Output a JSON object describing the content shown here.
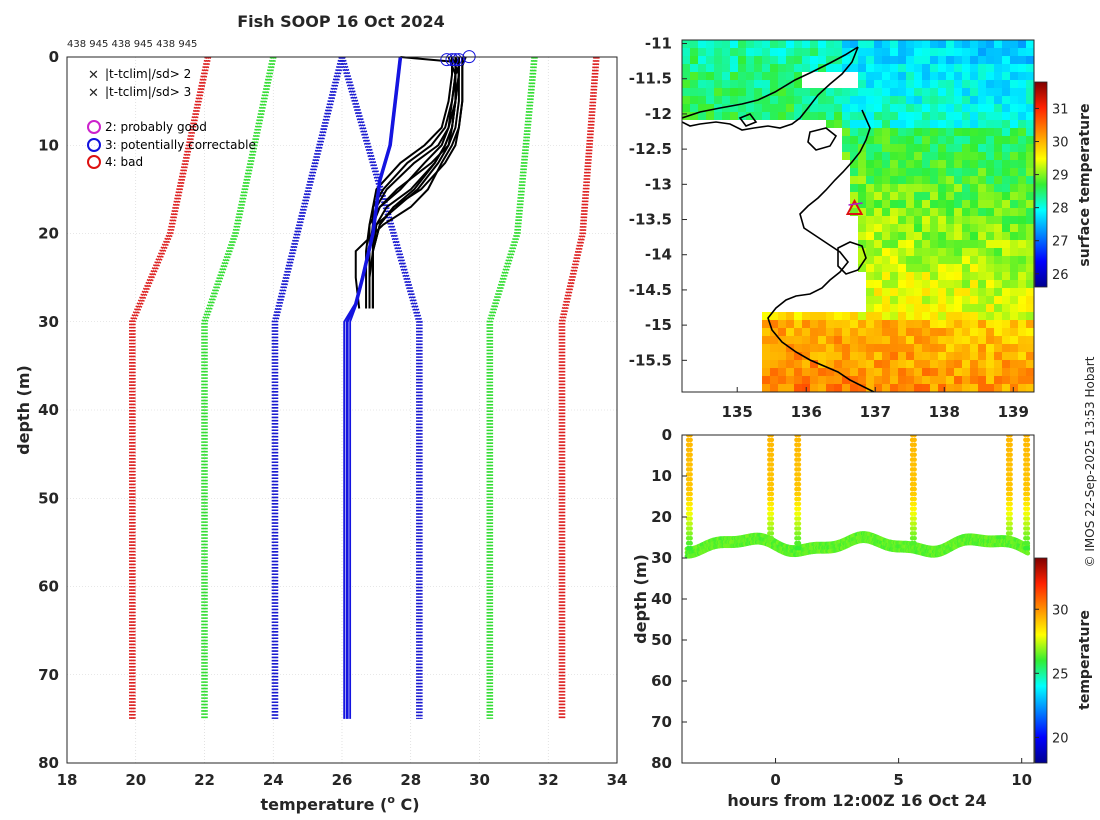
{
  "profile_chart": {
    "type": "line",
    "title": "Fish SOOP 16 Oct 2024",
    "ids_label": "438 945 438 945 438 945",
    "xlabel": "temperature (",
    "xlabel_sup": "o",
    "xlabel_end": " C)",
    "ylabel": "depth (m)",
    "xlim": [
      18,
      34
    ],
    "ylim": [
      80,
      0
    ],
    "xticks": [
      "18",
      "20",
      "22",
      "24",
      "26",
      "28",
      "30",
      "32",
      "34"
    ],
    "yticks": [
      "0",
      "10",
      "20",
      "30",
      "40",
      "50",
      "60",
      "70",
      "80"
    ],
    "legend": [
      {
        "marker": "x",
        "color": "#22cc22",
        "label": "|t-tclim|/sd> 2"
      },
      {
        "marker": "x",
        "color": "#dd1111",
        "label": "|t-tclim|/sd> 3"
      },
      {
        "marker": "o",
        "color": "#cc22cc",
        "label": "2: probably good"
      },
      {
        "marker": "o",
        "color": "#1111dd",
        "label": "3: potentially correctable"
      },
      {
        "marker": "o",
        "color": "#dd1111",
        "label": "4: bad"
      }
    ],
    "climatology": [
      {
        "name": "mean",
        "color": "#1a1ad0",
        "depth": [
          0,
          30,
          75
        ],
        "left": [
          26,
          24.05,
          24.05
        ],
        "right": [
          26,
          28.25,
          28.25
        ]
      },
      {
        "name": "2sd",
        "color": "#33dd33",
        "depth": [
          0,
          20,
          30,
          75
        ],
        "left": [
          24.0,
          22.9,
          22.0,
          22.0
        ],
        "right": [
          31.6,
          31.1,
          30.3,
          30.3
        ]
      },
      {
        "name": "3sd",
        "color": "#dd2222",
        "depth": [
          0,
          20,
          30,
          75
        ],
        "left": [
          22.1,
          21.0,
          19.9,
          19.9
        ],
        "right": [
          33.4,
          33.0,
          32.4,
          32.4
        ]
      }
    ],
    "mean_profile": {
      "color": "#1414e0",
      "depth": [
        0,
        10,
        14,
        20,
        25,
        28,
        30,
        40,
        75
      ],
      "temp": [
        27.7,
        27.4,
        27.1,
        26.9,
        26.6,
        26.4,
        26.15,
        26.15,
        26.15
      ]
    },
    "observed_profiles": {
      "color": "#000000",
      "depth": [
        0,
        1,
        2,
        5,
        8,
        10,
        12,
        15,
        17,
        19,
        22,
        25,
        28.5
      ],
      "profiles": [
        [
          29.1,
          29.2,
          29.2,
          29.1,
          28.9,
          28.4,
          27.7,
          27.0,
          26.9,
          26.8,
          26.8,
          26.8,
          26.8
        ],
        [
          29.2,
          29.3,
          29.3,
          29.2,
          29.0,
          28.6,
          27.9,
          27.2,
          26.9,
          26.9,
          26.8,
          26.8,
          26.8
        ],
        [
          29.3,
          29.3,
          29.4,
          29.3,
          29.1,
          28.8,
          28.1,
          27.3,
          27.0,
          26.9,
          26.9,
          26.9,
          26.9
        ],
        [
          29.4,
          29.4,
          29.4,
          29.4,
          29.3,
          29.1,
          28.6,
          27.6,
          27.1,
          26.9,
          26.9,
          26.8,
          26.8
        ],
        [
          29.3,
          29.4,
          29.4,
          29.3,
          29.2,
          29.0,
          28.7,
          28.0,
          27.3,
          27.0,
          26.9,
          26.9,
          26.9
        ],
        [
          29.5,
          29.5,
          29.5,
          29.5,
          29.4,
          29.3,
          29.0,
          28.3,
          27.5,
          27.1,
          26.9,
          26.9,
          26.9
        ],
        [
          29.2,
          29.2,
          29.3,
          29.2,
          29.1,
          28.9,
          28.4,
          27.7,
          27.1,
          26.8,
          26.7,
          26.7,
          26.7
        ],
        [
          29.6,
          29.5,
          29.5,
          29.5,
          29.4,
          29.2,
          28.9,
          28.5,
          28.0,
          27.2,
          26.4,
          26.4,
          26.5
        ],
        [
          29.4,
          29.4,
          29.3,
          29.3,
          29.2,
          29.0,
          28.7,
          28.1,
          27.5,
          27.1,
          26.9,
          26.9,
          26.9
        ],
        [
          29.2,
          29.3,
          29.3,
          29.3,
          29.2,
          29.1,
          28.8,
          28.2,
          27.6,
          27.0,
          26.9,
          26.9,
          26.9
        ]
      ]
    },
    "flagged_surface_points": [
      29.05,
      29.2,
      29.3,
      29.4,
      29.7
    ]
  },
  "map_chart": {
    "type": "heatmap",
    "xticks": [
      "135",
      "136",
      "137",
      "138",
      "139"
    ],
    "yticks": [
      "-11",
      "-11.5",
      "-12",
      "-12.5",
      "-13",
      "-13.5",
      "-14",
      "-14.5",
      "-15",
      "-15.5"
    ],
    "xlim": [
      134.2,
      139.3
    ],
    "ylim": [
      -15.95,
      -10.95
    ],
    "colorbar_label": "surface temperature",
    "colorbar_ticks": [
      "26",
      "27",
      "28",
      "29",
      "30",
      "31"
    ],
    "colorbar_range": [
      25.6,
      31.8
    ],
    "vessel_position": {
      "lon": 136.7,
      "lat": -13.35
    }
  },
  "timeseries_chart": {
    "type": "scatter",
    "xlabel": "hours from 12:00Z 16 Oct 24",
    "ylabel": "depth (m)",
    "xticks": [
      "0",
      "5",
      "10"
    ],
    "yticks": [
      "0",
      "10",
      "20",
      "30",
      "40",
      "50",
      "60",
      "70",
      "80"
    ],
    "xlim": [
      -3.8,
      10.5
    ],
    "ylim": [
      80,
      0
    ],
    "colorbar_label": "temperature",
    "colorbar_ticks": [
      "20",
      "25",
      "30"
    ],
    "colorbar_range": [
      18,
      34
    ],
    "profile_hours": [
      -3.5,
      -0.2,
      0.9,
      5.6,
      9.5,
      10.2
    ]
  },
  "credit": "© IMOS 22-Sep-2025 13:53 Hobart"
}
